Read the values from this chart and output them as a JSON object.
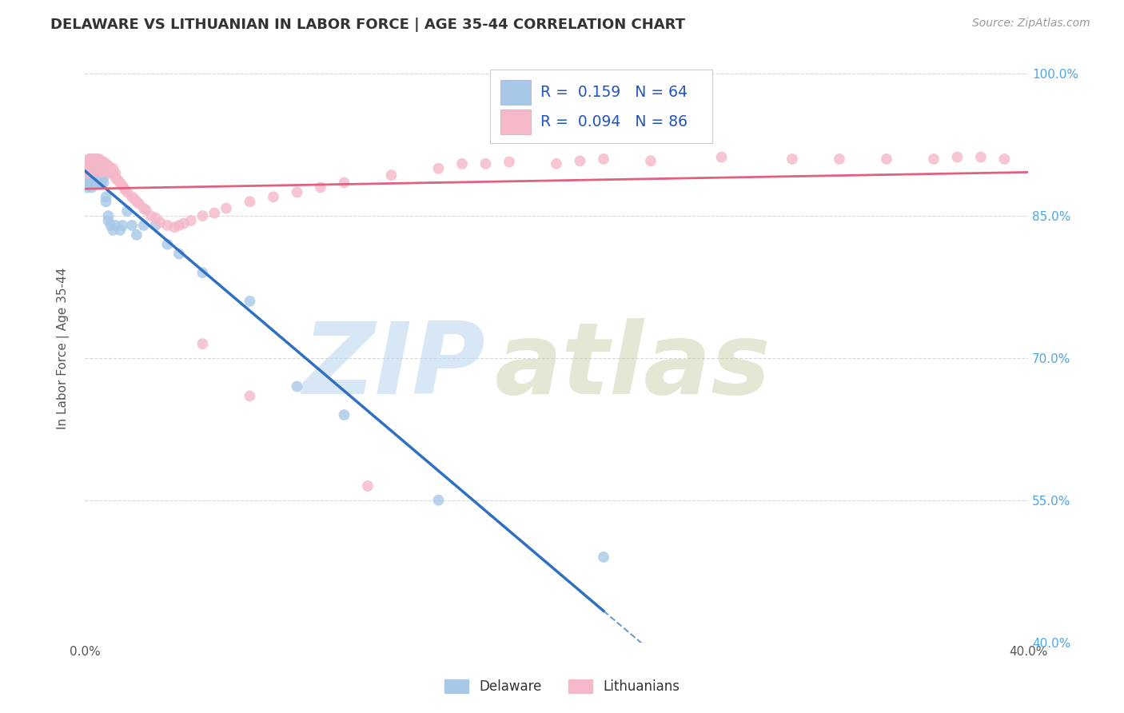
{
  "title": "DELAWARE VS LITHUANIAN IN LABOR FORCE | AGE 35-44 CORRELATION CHART",
  "source": "Source: ZipAtlas.com",
  "ylabel": "In Labor Force | Age 35-44",
  "x_min": 0.0,
  "x_max": 0.4,
  "y_min": 0.4,
  "y_max": 1.02,
  "y_ticks": [
    0.4,
    0.55,
    0.7,
    0.85,
    1.0
  ],
  "y_tick_labels": [
    "40.0%",
    "55.0%",
    "70.0%",
    "85.0%",
    "100.0%"
  ],
  "delaware_R": 0.159,
  "delaware_N": 64,
  "lithuanian_R": 0.094,
  "lithuanian_N": 86,
  "delaware_color": "#a8c8e8",
  "delaware_line_color": "#3070c0",
  "lithuanian_color": "#f4b8c8",
  "lithuanian_line_color": "#e06080",
  "watermark_zip": "ZIP",
  "watermark_atlas": "atlas",
  "background_color": "#ffffff",
  "grid_color": "#d8d8d8",
  "del_x": [
    0.001,
    0.001,
    0.001,
    0.002,
    0.002,
    0.002,
    0.002,
    0.002,
    0.002,
    0.003,
    0.003,
    0.003,
    0.003,
    0.003,
    0.003,
    0.003,
    0.004,
    0.004,
    0.004,
    0.004,
    0.004,
    0.004,
    0.004,
    0.005,
    0.005,
    0.005,
    0.005,
    0.005,
    0.005,
    0.005,
    0.006,
    0.006,
    0.006,
    0.006,
    0.006,
    0.007,
    0.007,
    0.007,
    0.007,
    0.008,
    0.008,
    0.008,
    0.009,
    0.009,
    0.01,
    0.01,
    0.011,
    0.012,
    0.013,
    0.015,
    0.016,
    0.018,
    0.02,
    0.022,
    0.025,
    0.03,
    0.035,
    0.04,
    0.05,
    0.07,
    0.09,
    0.11,
    0.15,
    0.22
  ],
  "del_y": [
    0.9,
    0.89,
    0.88,
    0.91,
    0.905,
    0.9,
    0.895,
    0.89,
    0.885,
    0.91,
    0.905,
    0.9,
    0.895,
    0.89,
    0.885,
    0.88,
    0.91,
    0.908,
    0.905,
    0.9,
    0.895,
    0.892,
    0.888,
    0.91,
    0.907,
    0.904,
    0.9,
    0.897,
    0.893,
    0.889,
    0.905,
    0.9,
    0.895,
    0.89,
    0.885,
    0.9,
    0.895,
    0.89,
    0.885,
    0.895,
    0.89,
    0.885,
    0.87,
    0.865,
    0.85,
    0.845,
    0.84,
    0.835,
    0.84,
    0.835,
    0.84,
    0.855,
    0.84,
    0.83,
    0.84,
    0.84,
    0.82,
    0.81,
    0.79,
    0.76,
    0.67,
    0.64,
    0.55,
    0.49
  ],
  "lit_x": [
    0.001,
    0.001,
    0.002,
    0.002,
    0.002,
    0.003,
    0.003,
    0.003,
    0.003,
    0.004,
    0.004,
    0.004,
    0.004,
    0.004,
    0.005,
    0.005,
    0.005,
    0.005,
    0.006,
    0.006,
    0.006,
    0.006,
    0.007,
    0.007,
    0.007,
    0.007,
    0.008,
    0.008,
    0.008,
    0.009,
    0.009,
    0.01,
    0.01,
    0.011,
    0.011,
    0.012,
    0.012,
    0.013,
    0.013,
    0.014,
    0.015,
    0.016,
    0.017,
    0.018,
    0.02,
    0.021,
    0.022,
    0.023,
    0.025,
    0.026,
    0.028,
    0.03,
    0.032,
    0.035,
    0.038,
    0.04,
    0.042,
    0.045,
    0.05,
    0.055,
    0.06,
    0.07,
    0.08,
    0.09,
    0.1,
    0.11,
    0.13,
    0.15,
    0.16,
    0.17,
    0.18,
    0.2,
    0.21,
    0.22,
    0.24,
    0.27,
    0.3,
    0.32,
    0.34,
    0.36,
    0.37,
    0.38,
    0.39,
    0.05,
    0.07,
    0.12
  ],
  "lit_y": [
    0.905,
    0.895,
    0.91,
    0.905,
    0.9,
    0.91,
    0.907,
    0.903,
    0.898,
    0.91,
    0.907,
    0.904,
    0.9,
    0.896,
    0.91,
    0.907,
    0.903,
    0.898,
    0.91,
    0.907,
    0.903,
    0.898,
    0.908,
    0.904,
    0.9,
    0.896,
    0.907,
    0.903,
    0.898,
    0.905,
    0.9,
    0.903,
    0.898,
    0.9,
    0.895,
    0.9,
    0.895,
    0.895,
    0.89,
    0.888,
    0.885,
    0.882,
    0.878,
    0.875,
    0.87,
    0.868,
    0.865,
    0.863,
    0.858,
    0.856,
    0.85,
    0.848,
    0.843,
    0.84,
    0.838,
    0.84,
    0.842,
    0.845,
    0.85,
    0.853,
    0.858,
    0.865,
    0.87,
    0.875,
    0.88,
    0.885,
    0.893,
    0.9,
    0.905,
    0.905,
    0.907,
    0.905,
    0.908,
    0.91,
    0.908,
    0.912,
    0.91,
    0.91,
    0.91,
    0.91,
    0.912,
    0.912,
    0.91,
    0.715,
    0.66,
    0.565
  ]
}
